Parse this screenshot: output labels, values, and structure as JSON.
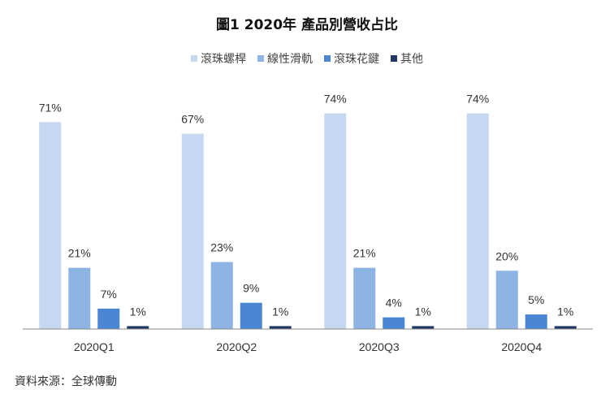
{
  "chart_data": {
    "type": "bar",
    "title": "圖1 2020年 產品別營收占比",
    "categories": [
      "2020Q1",
      "2020Q2",
      "2020Q3",
      "2020Q4"
    ],
    "series": [
      {
        "name": "滾珠螺桿",
        "color": "#c6d8f1",
        "values": [
          71,
          67,
          74,
          74
        ],
        "labels": [
          "71%",
          "67%",
          "74%",
          "74%"
        ]
      },
      {
        "name": "線性滑軌",
        "color": "#8eb4e3",
        "values": [
          21,
          23,
          21,
          20
        ],
        "labels": [
          "21%",
          "23%",
          "21%",
          "20%"
        ]
      },
      {
        "name": "滾珠花鍵",
        "color": "#4a86d3",
        "values": [
          7,
          9,
          4,
          5
        ],
        "labels": [
          "7%",
          "9%",
          "4%",
          "5%"
        ]
      },
      {
        "name": "其他",
        "color": "#1f3864",
        "values": [
          1,
          1,
          1,
          1
        ],
        "labels": [
          "1%",
          "1%",
          "1%",
          "1%"
        ]
      }
    ],
    "ylim": [
      0,
      80
    ],
    "legend": "top-center",
    "grid": false
  },
  "source_note": "資料來源：全球傳動"
}
